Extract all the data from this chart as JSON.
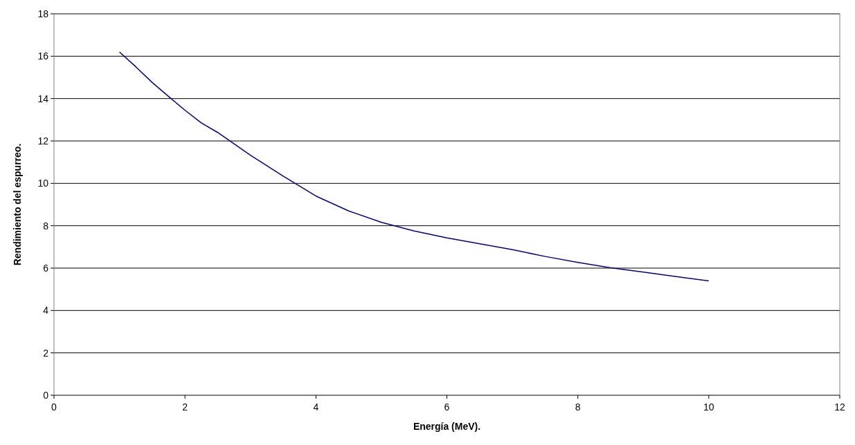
{
  "chart_data": {
    "type": "line",
    "xlabel": "Energía (MeV).",
    "ylabel": "Rendimiento del espurreo.",
    "x": [
      1,
      1.25,
      1.5,
      1.75,
      2,
      2.25,
      2.5,
      3,
      3.5,
      4,
      4.5,
      5,
      5.5,
      6,
      6.5,
      7,
      7.5,
      8,
      8.5,
      9,
      9.5,
      10
    ],
    "series": [
      {
        "color": "#000080",
        "values": [
          16.2,
          15.5,
          14.76,
          14.1,
          13.45,
          12.85,
          12.4,
          11.33,
          10.34,
          9.4,
          8.7,
          8.16,
          7.75,
          7.43,
          7.15,
          6.87,
          6.55,
          6.27,
          6.02,
          5.81,
          5.6,
          5.4
        ]
      }
    ],
    "xlim": [
      0,
      12
    ],
    "xticks": [
      0,
      2,
      4,
      6,
      8,
      10,
      12
    ],
    "ylim": [
      0,
      18
    ],
    "yticks": [
      0,
      2,
      4,
      6,
      8,
      10,
      12,
      14,
      16,
      18
    ],
    "grid": "y",
    "marker": "none",
    "line_style": "solid"
  }
}
